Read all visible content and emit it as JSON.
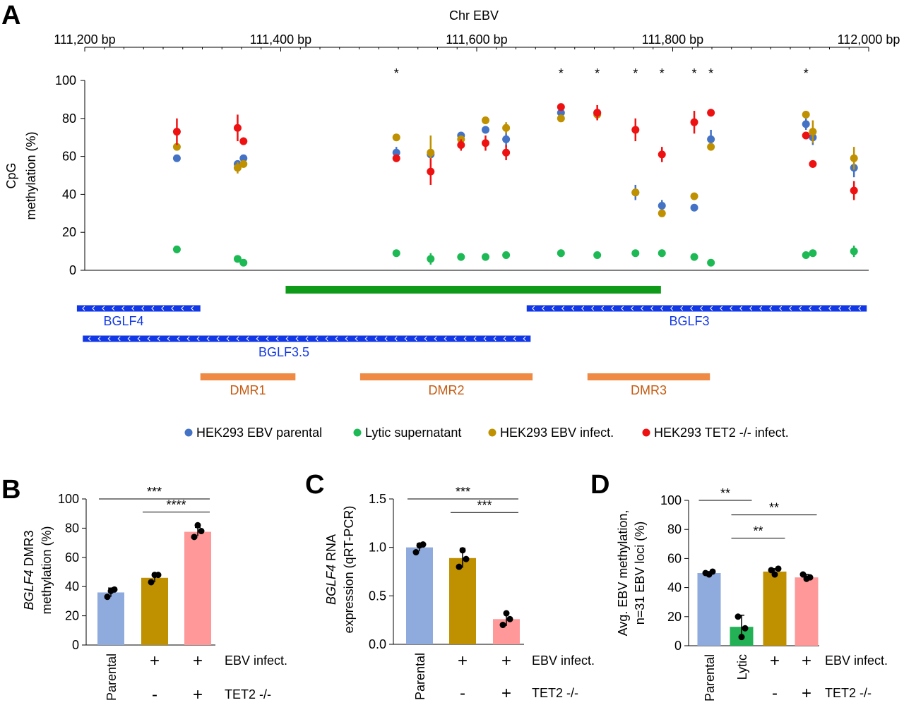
{
  "panels": {
    "A": "A",
    "B": "B",
    "C": "C",
    "D": "D"
  },
  "legend": [
    {
      "label": "HEK293 EBV parental",
      "color": "#4472c4"
    },
    {
      "label": "Lytic supernatant",
      "color": "#1db954"
    },
    {
      "label": "HEK293 EBV infect.",
      "color": "#bf9000"
    },
    {
      "label": "HEK293 TET2 -/- infect.",
      "color": "#ee1111"
    }
  ],
  "chart_data": [
    {
      "type": "scatter",
      "panel": "A",
      "top_axis_label": "Chr EBV",
      "top_axis_ticks": [
        {
          "pos": 111200,
          "label": "111,200 bp"
        },
        {
          "pos": 111400,
          "label": "111,400 bp"
        },
        {
          "pos": 111600,
          "label": "111,600 bp"
        },
        {
          "pos": 111800,
          "label": "111,800 bp"
        },
        {
          "pos": 112000,
          "label": "112,000 bp"
        }
      ],
      "xlim": [
        111200,
        112000
      ],
      "ylabel_lines": [
        "CpG",
        "methylation (%)"
      ],
      "ylim": [
        0,
        100
      ],
      "yticks": [
        0,
        20,
        40,
        60,
        80,
        100
      ],
      "grid": false,
      "legend_position": "bottom",
      "significance": [
        {
          "x": 111518,
          "label": "*"
        },
        {
          "x": 111686,
          "label": "*"
        },
        {
          "x": 111723,
          "label": "*"
        },
        {
          "x": 111762,
          "label": "*"
        },
        {
          "x": 111789,
          "label": "*"
        },
        {
          "x": 111822,
          "label": "*"
        },
        {
          "x": 111839,
          "label": "*"
        },
        {
          "x": 111936,
          "label": "*"
        }
      ],
      "points": [
        {
          "x": 111294,
          "parental": [
            59,
            0
          ],
          "lytic": [
            11,
            2
          ],
          "infect": [
            65,
            0
          ],
          "tet2": [
            73,
            7
          ]
        },
        {
          "x": 111356,
          "parental": [
            56,
            0
          ],
          "lytic": [
            6,
            1
          ],
          "infect": [
            54,
            3
          ],
          "tet2": [
            75,
            7
          ]
        },
        {
          "x": 111362,
          "parental": [
            59,
            0
          ],
          "lytic": [
            4,
            1
          ],
          "infect": [
            56,
            2
          ],
          "tet2": [
            68,
            2
          ]
        },
        {
          "x": 111518,
          "parental": [
            62,
            3
          ],
          "lytic": [
            9,
            1
          ],
          "infect": [
            70,
            0
          ],
          "tet2": [
            59,
            2
          ]
        },
        {
          "x": 111553,
          "parental": [
            61,
            0
          ],
          "lytic": [
            6,
            3
          ],
          "infect": [
            62,
            9
          ],
          "tet2": [
            52,
            7
          ]
        },
        {
          "x": 111584,
          "parental": [
            71,
            0
          ],
          "lytic": [
            7,
            2
          ],
          "infect": [
            69,
            0
          ],
          "tet2": [
            66,
            3
          ]
        },
        {
          "x": 111609,
          "parental": [
            74,
            0
          ],
          "lytic": [
            7,
            0
          ],
          "infect": [
            79,
            2
          ],
          "tet2": [
            67,
            4
          ]
        },
        {
          "x": 111630,
          "parental": [
            69,
            4
          ],
          "lytic": [
            8,
            0
          ],
          "infect": [
            75,
            3
          ],
          "tet2": [
            62,
            4
          ]
        },
        {
          "x": 111686,
          "parental": [
            83,
            0
          ],
          "lytic": [
            9,
            2
          ],
          "infect": [
            80,
            0
          ],
          "tet2": [
            86,
            0
          ]
        },
        {
          "x": 111723,
          "parental": [
            83,
            0
          ],
          "lytic": [
            8,
            0
          ],
          "infect": [
            82,
            2
          ],
          "tet2": [
            83,
            4
          ]
        },
        {
          "x": 111762,
          "parental": [
            41,
            4
          ],
          "lytic": [
            9,
            1
          ],
          "infect": [
            41,
            2
          ],
          "tet2": [
            74,
            6
          ]
        },
        {
          "x": 111789,
          "parental": [
            34,
            3
          ],
          "lytic": [
            9,
            2
          ],
          "infect": [
            30,
            0
          ],
          "tet2": [
            61,
            4
          ]
        },
        {
          "x": 111822,
          "parental": [
            33,
            0
          ],
          "lytic": [
            7,
            0
          ],
          "infect": [
            39,
            0
          ],
          "tet2": [
            78,
            6
          ]
        },
        {
          "x": 111839,
          "parental": [
            69,
            5
          ],
          "lytic": [
            4,
            0
          ],
          "infect": [
            65,
            0
          ],
          "tet2": [
            83,
            2
          ]
        },
        {
          "x": 111936,
          "parental": [
            77,
            3
          ],
          "lytic": [
            8,
            0
          ],
          "infect": [
            82,
            0
          ],
          "tet2": [
            71,
            0
          ]
        },
        {
          "x": 111943,
          "parental": [
            70,
            4
          ],
          "lytic": [
            9,
            0
          ],
          "infect": [
            73,
            6
          ],
          "tet2": [
            56,
            2
          ]
        },
        {
          "x": 111985,
          "parental": [
            54,
            5
          ],
          "lytic": [
            10,
            3
          ],
          "infect": [
            59,
            6
          ],
          "tet2": [
            42,
            5
          ]
        }
      ],
      "tracks": [
        {
          "kind": "green-bar",
          "start": 111405,
          "end": 111788
        },
        {
          "kind": "gene",
          "label": "BGLF4",
          "start": 111192,
          "end": 111318,
          "strand": "-"
        },
        {
          "kind": "gene",
          "label": "BGLF3",
          "start": 111651,
          "end": 111998,
          "strand": "-"
        },
        {
          "kind": "gene",
          "label": "BGLF3.5",
          "start": 111198,
          "end": 111655,
          "strand": "-"
        },
        {
          "kind": "region",
          "label": "DMR1",
          "start": 111318,
          "end": 111415
        },
        {
          "kind": "region",
          "label": "DMR2",
          "start": 111481,
          "end": 111657
        },
        {
          "kind": "region",
          "label": "DMR3",
          "start": 111713,
          "end": 111838
        }
      ]
    },
    {
      "type": "bar",
      "panel": "B",
      "ylabel_italic": "BGLF4",
      "ylabel_rest": " DMR3",
      "ylabel_line2": "methylation (%)",
      "ylim": [
        0,
        100
      ],
      "yticks": [
        0,
        20,
        40,
        60,
        80,
        100
      ],
      "categories": [
        "Parental",
        "",
        ""
      ],
      "values": [
        36,
        46,
        77.5
      ],
      "errors": [
        3,
        3,
        3
      ],
      "colors": [
        "#8faadc",
        "#bf9000",
        "#ff9999"
      ],
      "replicates": [
        [
          33,
          38,
          37
        ],
        [
          43,
          48,
          48
        ],
        [
          74,
          78,
          82
        ]
      ],
      "row1_marks": [
        "",
        "+",
        "+"
      ],
      "row1_label": "EBV infect.",
      "row2_marks": [
        "",
        "-",
        "+"
      ],
      "row2_label": "TET2 -/-",
      "significance": [
        {
          "from": 0,
          "to": 2,
          "label": "***",
          "level": 100
        },
        {
          "from": 1,
          "to": 2,
          "label": "****",
          "level": 91
        }
      ]
    },
    {
      "type": "bar",
      "panel": "C",
      "ylabel_italic": "BGLF4",
      "ylabel_rest": " RNA",
      "ylabel_line2": "expression (qRT-PCR)",
      "ylim": [
        0,
        1.5
      ],
      "yticks": [
        "0.0",
        "0.5",
        "1.0",
        "1.5"
      ],
      "categories": [
        "Parental",
        "",
        ""
      ],
      "values": [
        1.0,
        0.89,
        0.26
      ],
      "errors": [
        0.04,
        0.1,
        0.07
      ],
      "colors": [
        "#8faadc",
        "#bf9000",
        "#ff9999"
      ],
      "replicates": [
        [
          0.95,
          1.03,
          1.02
        ],
        [
          0.8,
          0.88,
          0.97
        ],
        [
          0.2,
          0.26,
          0.32
        ]
      ],
      "row1_marks": [
        "",
        "+",
        "+"
      ],
      "row1_label": "EBV infect.",
      "row2_marks": [
        "",
        "-",
        "+"
      ],
      "row2_label": "TET2 -/-",
      "significance": [
        {
          "from": 0,
          "to": 2,
          "label": "***",
          "level": 1.5
        },
        {
          "from": 1,
          "to": 2,
          "label": "***",
          "level": 1.36
        }
      ]
    },
    {
      "type": "bar",
      "panel": "D",
      "ylabel_line1": "Avg. EBV methylation,",
      "ylabel_line2": "n=31 EBV loci (%)",
      "ylim": [
        0,
        100
      ],
      "yticks": [
        0,
        20,
        40,
        60,
        80,
        100
      ],
      "categories": [
        "Parental",
        "Lytic",
        "",
        ""
      ],
      "values": [
        50,
        13,
        51,
        47
      ],
      "errors": [
        1,
        8,
        2,
        2
      ],
      "colors": [
        "#8faadc",
        "#22b155",
        "#bf9000",
        "#ff9999"
      ],
      "replicates": [
        [
          50,
          51,
          49
        ],
        [
          20,
          12,
          6
        ],
        [
          52,
          53,
          49
        ],
        [
          49,
          47,
          46
        ]
      ],
      "row1_marks": [
        "",
        "",
        "+",
        "+"
      ],
      "row1_label": "EBV infect.",
      "row2_marks": [
        "",
        "",
        "-",
        "+"
      ],
      "row2_label": "TET2 -/-",
      "significance": [
        {
          "from": 0,
          "to": 1,
          "label": "**",
          "level": 100
        },
        {
          "from": 1,
          "to": 3,
          "label": "**",
          "level": 90
        },
        {
          "from": 1,
          "to": 2,
          "label": "**",
          "level": 74
        }
      ]
    }
  ]
}
